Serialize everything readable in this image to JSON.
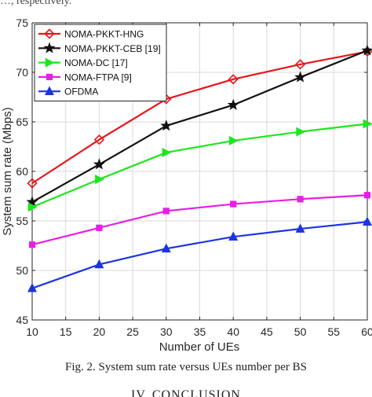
{
  "page": {
    "top_fragment": "…, respectively.",
    "caption": "Fig. 2. System sum rate versus UEs number per BS",
    "section_heading": "IV. CONCLUSION"
  },
  "chart_data": {
    "type": "line",
    "title": "",
    "xlabel": "Number of UEs",
    "ylabel": "System sum rate (Mbps)",
    "xlim": [
      10,
      60
    ],
    "ylim": [
      45,
      75
    ],
    "xticks": [
      10,
      15,
      20,
      25,
      30,
      35,
      40,
      45,
      50,
      55,
      60
    ],
    "yticks": [
      45,
      50,
      55,
      60,
      65,
      70,
      75
    ],
    "grid": true,
    "legend_position": "top-left",
    "x": [
      10,
      20,
      30,
      40,
      50,
      60
    ],
    "series": [
      {
        "name": "NOMA-PKKT-HNG",
        "color": "#e8161b",
        "marker": "diamond",
        "values": [
          58.8,
          63.2,
          67.3,
          69.3,
          70.8,
          72.1
        ]
      },
      {
        "name": "NOMA-PKKT-CEB [19]",
        "color": "#111111",
        "marker": "star",
        "values": [
          56.9,
          60.7,
          64.6,
          66.7,
          69.5,
          72.2
        ]
      },
      {
        "name": "NOMA-DC [17]",
        "color": "#1ee61e",
        "marker": "triangle-right",
        "values": [
          56.4,
          59.2,
          61.9,
          63.1,
          64.0,
          64.8
        ]
      },
      {
        "name": "NOMA-FTPA [9]",
        "color": "#e81ee8",
        "marker": "square",
        "values": [
          52.6,
          54.3,
          56.0,
          56.7,
          57.2,
          57.6
        ]
      },
      {
        "name": "OFDMA",
        "color": "#1c34e0",
        "marker": "triangle-up",
        "values": [
          48.2,
          50.6,
          52.2,
          53.4,
          54.2,
          54.9
        ]
      }
    ]
  }
}
